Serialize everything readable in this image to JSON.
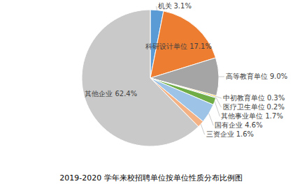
{
  "chart_data": {
    "type": "pie",
    "title": "2019-2020 学年来校招聘单位按单位性质分布比例图",
    "categories": [
      "机关",
      "科研设计单位",
      "高等教育单位",
      "中初教育单位",
      "医疗卫生单位",
      "其他事业单位",
      "国有企业",
      "三资企业",
      "其他企业"
    ],
    "values": [
      3.1,
      17.1,
      9.0,
      0.3,
      0.2,
      1.7,
      4.6,
      1.6,
      62.4
    ],
    "value_labels": [
      "3.1%",
      "17.1%",
      "9.0%",
      "0.3%",
      "0.2%",
      "1.7%",
      "4.6%",
      "1.6%",
      "62.4%"
    ],
    "colors": [
      "#5b9bd5",
      "#ed7d31",
      "#a5a5a5",
      "#ffc000",
      "#4472c4",
      "#70ad47",
      "#9dc3e6",
      "#f4b183",
      "#c9c9c9"
    ],
    "data_labels": true
  }
}
